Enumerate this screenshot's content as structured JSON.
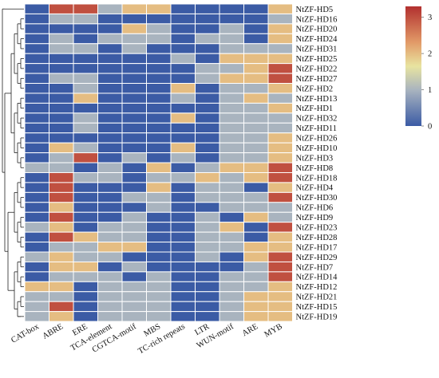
{
  "chart_data": {
    "type": "heatmap",
    "title": "",
    "xlabel": "",
    "ylabel": "",
    "columns": [
      "CAT-box",
      "ABRE",
      "ERE",
      "TCA-element",
      "CGTCA-motif",
      "MBS",
      "TC-rich repeats",
      "LTR",
      "WUN-motif",
      "ARE",
      "MYB"
    ],
    "rows": [
      "NtZF-HD5",
      "NtZF-HD16",
      "NtZF-HD20",
      "NtZF-HD24",
      "NtZF-HD31",
      "NtZF-HD25",
      "NtZF-HD22",
      "NtZF-HD27",
      "NtZF-HD2",
      "NtZF-HD13",
      "NtZF-HD1",
      "NtZF-HD32",
      "NtZF-HD11",
      "NtZF-HD26",
      "NtZF-HD10",
      "NtZF-HD3",
      "NtZF-HD8",
      "NtZF-HD18",
      "NtZF-HD4",
      "NtZF-HD30",
      "NtZF-HD6",
      "NtZF-HD9",
      "NtZF-HD23",
      "NtZF-HD28",
      "NtZF-HD17",
      "NtZF-HD29",
      "NtZF-HD7",
      "NtZF-HD14",
      "NtZF-HD12",
      "NtZF-HD21",
      "NtZF-HD15",
      "NtZF-HD19"
    ],
    "values": [
      [
        0,
        3,
        3,
        1,
        2,
        2,
        0,
        0,
        0,
        0,
        2
      ],
      [
        0,
        1,
        1,
        0,
        0,
        0,
        0,
        0,
        0,
        0,
        1
      ],
      [
        0,
        0,
        0,
        0,
        2,
        1,
        0,
        0,
        1,
        0,
        2
      ],
      [
        0,
        1,
        0,
        1,
        1,
        1,
        0,
        1,
        1,
        0,
        2
      ],
      [
        0,
        1,
        1,
        0,
        1,
        0,
        0,
        0,
        1,
        1,
        1
      ],
      [
        0,
        0,
        0,
        0,
        0,
        0,
        1,
        0,
        2,
        2,
        2
      ],
      [
        0,
        0,
        0,
        0,
        0,
        0,
        0,
        1,
        1,
        2,
        3
      ],
      [
        0,
        1,
        1,
        0,
        0,
        0,
        0,
        1,
        2,
        2,
        3
      ],
      [
        0,
        0,
        1,
        0,
        0,
        0,
        2,
        0,
        1,
        1,
        2
      ],
      [
        0,
        0,
        2,
        0,
        0,
        0,
        1,
        0,
        1,
        2,
        1
      ],
      [
        0,
        0,
        0,
        0,
        0,
        0,
        0,
        0,
        1,
        1,
        2
      ],
      [
        0,
        0,
        1,
        0,
        0,
        0,
        2,
        0,
        1,
        1,
        1
      ],
      [
        0,
        0,
        1,
        0,
        0,
        0,
        0,
        0,
        1,
        1,
        1
      ],
      [
        0,
        0,
        0,
        0,
        0,
        0,
        0,
        0,
        1,
        1,
        2
      ],
      [
        0,
        2,
        1,
        0,
        0,
        0,
        2,
        0,
        1,
        1,
        2
      ],
      [
        0,
        1,
        3,
        0,
        1,
        0,
        1,
        0,
        1,
        1,
        2
      ],
      [
        1,
        1,
        0,
        1,
        0,
        2,
        0,
        1,
        2,
        2,
        3
      ],
      [
        0,
        3,
        1,
        1,
        0,
        1,
        1,
        2,
        1,
        2,
        3
      ],
      [
        0,
        3,
        0,
        0,
        0,
        2,
        0,
        1,
        1,
        0,
        2
      ],
      [
        0,
        3,
        0,
        0,
        1,
        1,
        0,
        1,
        1,
        1,
        3
      ],
      [
        0,
        2,
        0,
        0,
        0,
        1,
        0,
        0,
        1,
        1,
        1
      ],
      [
        0,
        3,
        0,
        0,
        1,
        0,
        0,
        1,
        0,
        2,
        1
      ],
      [
        1,
        2,
        0,
        1,
        1,
        0,
        0,
        1,
        2,
        0,
        3
      ],
      [
        0,
        3,
        2,
        1,
        1,
        0,
        0,
        1,
        1,
        0,
        2
      ],
      [
        0,
        1,
        1,
        2,
        2,
        0,
        0,
        1,
        1,
        2,
        2
      ],
      [
        1,
        2,
        1,
        1,
        0,
        0,
        0,
        1,
        0,
        2,
        3
      ],
      [
        0,
        2,
        2,
        0,
        1,
        0,
        0,
        0,
        0,
        1,
        3
      ],
      [
        0,
        1,
        1,
        1,
        0,
        1,
        0,
        0,
        1,
        1,
        3
      ],
      [
        2,
        2,
        0,
        1,
        1,
        1,
        0,
        0,
        1,
        1,
        2
      ],
      [
        1,
        1,
        0,
        1,
        1,
        1,
        0,
        0,
        1,
        2,
        2
      ],
      [
        1,
        3,
        0,
        1,
        1,
        1,
        0,
        0,
        1,
        2,
        2
      ],
      [
        1,
        2,
        0,
        1,
        1,
        1,
        0,
        0,
        1,
        2,
        2
      ]
    ],
    "scale": {
      "min": 0,
      "max": 3.3,
      "ticks": [
        0,
        1,
        2,
        3
      ],
      "colors": [
        "#3b5ba5",
        "#cfcfa3",
        "#e8e4a0",
        "#b2302f"
      ]
    },
    "dendrogram": true,
    "grid": true
  }
}
